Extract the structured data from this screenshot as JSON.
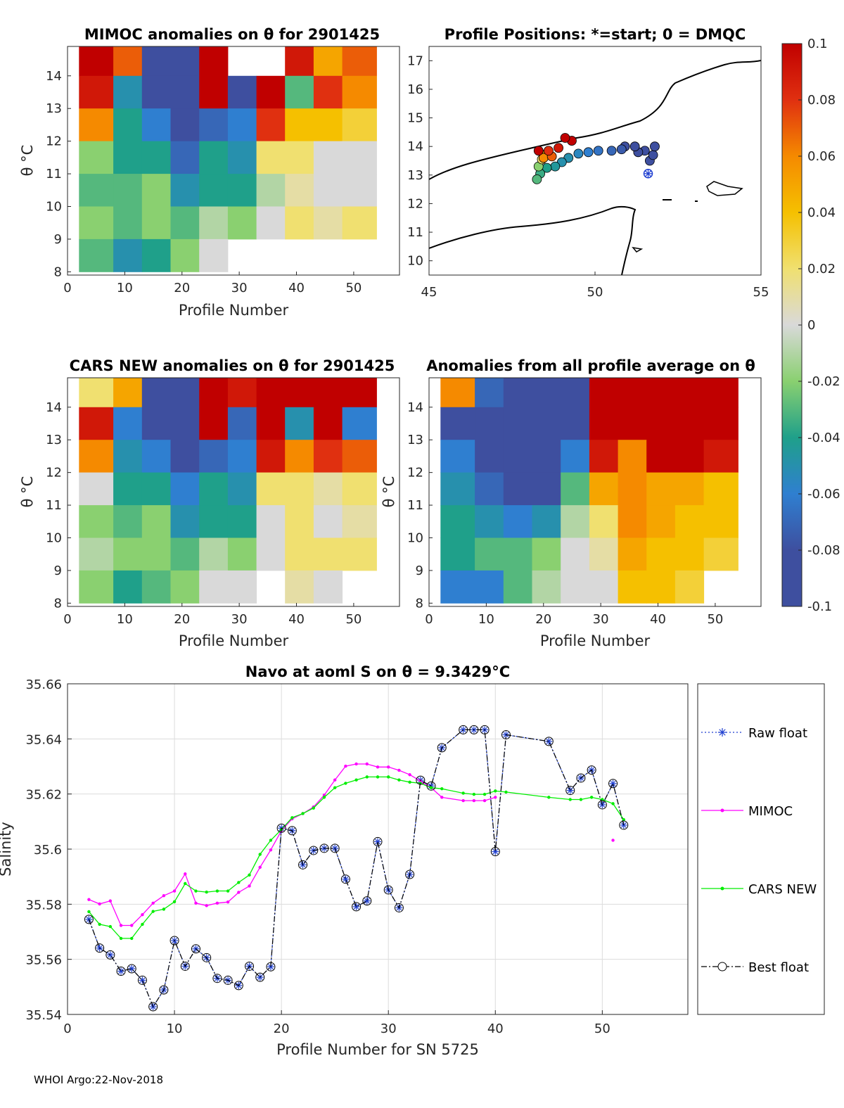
{
  "footer": "WHOI Argo:22-Nov-2018",
  "colors": {
    "raw": "#1f3fd0",
    "mimoc": "#ff00ff",
    "cars": "#00ee00",
    "best": "#000000"
  },
  "chart_data": [
    {
      "id": "mimoc",
      "type": "heatmap",
      "title": "MIMOC anomalies on θ  for 2901425",
      "xlabel": "Profile Number",
      "ylabel": "θ °C",
      "xlim": [
        0,
        58
      ],
      "ylim": [
        7.9,
        14.9
      ],
      "xticks": [
        "0",
        "10",
        "20",
        "30",
        "40",
        "50"
      ],
      "yticks": [
        "8",
        "9",
        "10",
        "11",
        "12",
        "13",
        "14"
      ],
      "rows": [
        "14.5",
        "13.5",
        "12.5",
        "11.5",
        "10.5",
        "9.5",
        "8.5"
      ],
      "cols": [
        "2-7",
        "8-12",
        "13-17",
        "18-22",
        "23-27",
        "28-32",
        "33-37",
        "38-42",
        "43-47",
        "48-53"
      ],
      "values": [
        [
          0.1,
          0.07,
          -0.09,
          -0.1,
          0.1,
          null,
          null,
          0.09,
          0.05,
          0.07
        ],
        [
          0.09,
          -0.05,
          -0.1,
          -0.1,
          0.1,
          -0.08,
          0.1,
          -0.03,
          0.08,
          0.06
        ],
        [
          0.06,
          -0.04,
          -0.06,
          -0.1,
          -0.07,
          -0.06,
          0.08,
          0.04,
          0.04,
          0.03
        ],
        [
          -0.02,
          -0.04,
          -0.04,
          -0.07,
          -0.04,
          -0.05,
          0.02,
          0.02,
          0.0,
          0.0
        ],
        [
          -0.03,
          -0.03,
          -0.02,
          -0.05,
          -0.04,
          -0.04,
          -0.01,
          0.01,
          0.0,
          0.0
        ],
        [
          -0.02,
          -0.03,
          -0.02,
          -0.03,
          -0.01,
          -0.02,
          0.0,
          0.02,
          0.01,
          0.02
        ],
        [
          -0.03,
          -0.05,
          -0.04,
          -0.02,
          0.0,
          null,
          null,
          null,
          null,
          null
        ]
      ]
    },
    {
      "id": "positions",
      "type": "scatter",
      "title": "Profile Positions: *=start; 0 = DMQC",
      "xlim": [
        45,
        55
      ],
      "ylim": [
        9.5,
        17.5
      ],
      "xticks": [
        "45",
        "50",
        "55"
      ],
      "yticks": [
        "10",
        "11",
        "12",
        "13",
        "14",
        "15",
        "16",
        "17"
      ],
      "points": [
        {
          "lon": 51.6,
          "lat": 13.05,
          "c": -0.1,
          "start": true
        },
        {
          "lon": 51.65,
          "lat": 13.5,
          "c": -0.1
        },
        {
          "lon": 51.75,
          "lat": 13.7,
          "c": -0.09
        },
        {
          "lon": 51.8,
          "lat": 14.0,
          "c": -0.09
        },
        {
          "lon": 51.5,
          "lat": 13.85,
          "c": -0.09
        },
        {
          "lon": 51.3,
          "lat": 13.8,
          "c": -0.085
        },
        {
          "lon": 51.2,
          "lat": 14.0,
          "c": -0.08
        },
        {
          "lon": 50.9,
          "lat": 14.0,
          "c": -0.08
        },
        {
          "lon": 50.8,
          "lat": 13.9,
          "c": -0.075
        },
        {
          "lon": 50.5,
          "lat": 13.85,
          "c": -0.07
        },
        {
          "lon": 50.1,
          "lat": 13.85,
          "c": -0.065
        },
        {
          "lon": 49.8,
          "lat": 13.8,
          "c": -0.06
        },
        {
          "lon": 49.5,
          "lat": 13.75,
          "c": -0.055
        },
        {
          "lon": 49.2,
          "lat": 13.6,
          "c": -0.05
        },
        {
          "lon": 49.0,
          "lat": 13.45,
          "c": -0.05
        },
        {
          "lon": 48.8,
          "lat": 13.3,
          "c": -0.045
        },
        {
          "lon": 48.55,
          "lat": 13.25,
          "c": -0.04
        },
        {
          "lon": 48.35,
          "lat": 13.05,
          "c": -0.035
        },
        {
          "lon": 48.25,
          "lat": 12.85,
          "c": -0.03
        },
        {
          "lon": 48.3,
          "lat": 13.3,
          "c": -0.02
        },
        {
          "lon": 48.4,
          "lat": 13.55,
          "c": 0.02
        },
        {
          "lon": 48.55,
          "lat": 13.75,
          "c": 0.04
        },
        {
          "lon": 48.45,
          "lat": 13.6,
          "c": 0.06
        },
        {
          "lon": 48.7,
          "lat": 13.65,
          "c": 0.07
        },
        {
          "lon": 48.6,
          "lat": 13.85,
          "c": 0.08
        },
        {
          "lon": 48.9,
          "lat": 13.95,
          "c": 0.09
        },
        {
          "lon": 49.3,
          "lat": 14.2,
          "c": 0.1
        },
        {
          "lon": 49.1,
          "lat": 14.3,
          "c": 0.1
        },
        {
          "lon": 48.3,
          "lat": 13.85,
          "c": 0.1
        }
      ],
      "colorbar": {
        "min": -0.1,
        "max": 0.1,
        "ticks": [
          "0.1",
          "0.08",
          "0.06",
          "0.04",
          "0.02",
          "0",
          "-0.02",
          "-0.04",
          "-0.06",
          "-0.08",
          "-0.1"
        ]
      }
    },
    {
      "id": "cars",
      "type": "heatmap",
      "title": "CARS NEW anomalies on θ for 2901425",
      "xlabel": "Profile Number",
      "ylabel": "θ °C",
      "xlim": [
        0,
        58
      ],
      "ylim": [
        7.9,
        14.9
      ],
      "xticks": [
        "0",
        "10",
        "20",
        "30",
        "40",
        "50"
      ],
      "yticks": [
        "8",
        "9",
        "10",
        "11",
        "12",
        "13",
        "14"
      ],
      "rows": [
        "14.5",
        "13.5",
        "12.5",
        "11.5",
        "10.5",
        "9.5",
        "8.5"
      ],
      "cols": [
        "2-7",
        "8-12",
        "13-17",
        "18-22",
        "23-27",
        "28-32",
        "33-37",
        "38-42",
        "43-47",
        "48-53"
      ],
      "values": [
        [
          0.02,
          0.05,
          -0.09,
          -0.1,
          0.1,
          0.09,
          0.1,
          0.1,
          0.1,
          0.1
        ],
        [
          0.09,
          -0.06,
          -0.1,
          -0.1,
          0.1,
          -0.07,
          0.1,
          -0.05,
          0.1,
          -0.06
        ],
        [
          0.06,
          -0.05,
          -0.06,
          -0.1,
          -0.07,
          -0.06,
          0.09,
          0.06,
          0.08,
          0.07
        ],
        [
          0.0,
          -0.04,
          -0.04,
          -0.06,
          -0.04,
          -0.05,
          0.02,
          0.02,
          0.01,
          0.02
        ],
        [
          -0.02,
          -0.03,
          -0.02,
          -0.05,
          -0.04,
          -0.04,
          0.0,
          0.02,
          0.0,
          0.01
        ],
        [
          -0.01,
          -0.02,
          -0.02,
          -0.03,
          -0.01,
          -0.02,
          0.0,
          0.02,
          0.02,
          0.02
        ],
        [
          -0.02,
          -0.04,
          -0.03,
          -0.02,
          0.0,
          0.0,
          null,
          0.01,
          0.0,
          null
        ]
      ]
    },
    {
      "id": "allavg",
      "type": "heatmap",
      "title": "Anomalies from all profile average on θ",
      "xlabel": "Profile Number",
      "ylabel": "θ °C",
      "xlim": [
        0,
        58
      ],
      "ylim": [
        7.9,
        14.9
      ],
      "xticks": [
        "0",
        "10",
        "20",
        "30",
        "40",
        "50"
      ],
      "yticks": [
        "8",
        "9",
        "10",
        "11",
        "12",
        "13",
        "14"
      ],
      "rows": [
        "14.5",
        "13.5",
        "12.5",
        "11.5",
        "10.5",
        "9.5",
        "8.5"
      ],
      "cols": [
        "2-7",
        "8-12",
        "13-17",
        "18-22",
        "23-27",
        "28-32",
        "33-37",
        "38-42",
        "43-47",
        "48-53"
      ],
      "values": [
        [
          0.06,
          -0.07,
          -0.1,
          -0.1,
          -0.09,
          0.1,
          0.1,
          0.1,
          0.1,
          0.1
        ],
        [
          -0.08,
          -0.1,
          -0.1,
          -0.1,
          -0.09,
          0.1,
          0.1,
          0.1,
          0.1,
          0.1
        ],
        [
          -0.06,
          -0.09,
          -0.1,
          -0.1,
          -0.06,
          0.09,
          0.06,
          0.1,
          0.1,
          0.09
        ],
        [
          -0.05,
          -0.07,
          -0.09,
          -0.09,
          -0.03,
          0.05,
          0.06,
          0.05,
          0.05,
          0.04
        ],
        [
          -0.04,
          -0.05,
          -0.06,
          -0.05,
          -0.01,
          0.02,
          0.06,
          0.05,
          0.04,
          0.04
        ],
        [
          -0.04,
          -0.03,
          -0.03,
          -0.02,
          0.0,
          0.01,
          0.05,
          0.04,
          0.04,
          0.03
        ],
        [
          -0.06,
          -0.06,
          -0.03,
          -0.01,
          0.0,
          0.0,
          0.04,
          0.04,
          0.03,
          null
        ]
      ]
    },
    {
      "id": "salinity",
      "type": "line",
      "title": "Navo at aoml S on θ = 9.3429°C",
      "xlabel": "Profile Number for SN 5725",
      "ylabel": "Salinity",
      "xlim": [
        0,
        58
      ],
      "ylim": [
        35.54,
        35.66
      ],
      "xticks": [
        0,
        10,
        20,
        30,
        40,
        50
      ],
      "yticks": [
        35.54,
        35.56,
        35.58,
        35.6,
        35.62,
        35.64,
        35.66
      ],
      "ytick_labels": [
        "35.54",
        "35.56",
        "35.58",
        "35.6",
        "35.62",
        "35.64",
        "35.66"
      ],
      "x": [
        2,
        3,
        4,
        5,
        6,
        7,
        8,
        9,
        10,
        11,
        12,
        13,
        14,
        15,
        16,
        17,
        18,
        19,
        20,
        21,
        22,
        23,
        24,
        25,
        26,
        27,
        28,
        29,
        30,
        31,
        32,
        33,
        34,
        35,
        37,
        38,
        39,
        40,
        41,
        45,
        47,
        48,
        49,
        50,
        51,
        52
      ],
      "series": [
        {
          "name": "Raw float",
          "key": "raw",
          "values": [
            35.5745,
            35.5641,
            35.5616,
            35.5557,
            35.5566,
            35.5524,
            35.5428,
            35.5489,
            35.5668,
            35.5575,
            35.5638,
            35.5606,
            35.5531,
            35.5524,
            35.5505,
            35.5575,
            35.5535,
            35.5573,
            35.6076,
            35.6067,
            35.5943,
            35.5995,
            35.6003,
            35.6003,
            35.5891,
            35.5791,
            35.5812,
            35.6027,
            35.5852,
            35.5787,
            35.5908,
            35.625,
            35.6229,
            35.6368,
            35.6433,
            35.6433,
            35.6433,
            35.5991,
            35.6415,
            35.6391,
            35.6213,
            35.6258,
            35.6287,
            35.6161,
            35.6238,
            35.6087
          ]
        },
        {
          "name": "MIMOC",
          "key": "mimoc",
          "values": [
            35.5817,
            35.5801,
            35.5812,
            35.5723,
            35.5723,
            35.5762,
            35.5804,
            35.5831,
            35.5848,
            35.591,
            35.5804,
            35.5795,
            35.5804,
            35.5808,
            35.5843,
            35.5866,
            35.5934,
            35.5997,
            35.6067,
            35.611,
            35.6129,
            35.6153,
            35.6196,
            35.6251,
            35.6301,
            35.6309,
            35.6309,
            35.6298,
            35.6298,
            35.6286,
            35.627,
            35.6247,
            35.6223,
            35.6188,
            35.6176,
            35.6176,
            35.6176,
            35.6188,
            null,
            null,
            null,
            null,
            null,
            null,
            35.6032,
            null
          ]
        },
        {
          "name": "CARS NEW",
          "key": "cars",
          "values": [
            35.5773,
            35.5727,
            35.5719,
            35.5676,
            35.5676,
            35.5727,
            35.5774,
            35.5782,
            35.5809,
            35.5875,
            35.5848,
            35.5844,
            35.5848,
            35.5848,
            35.5879,
            35.5906,
            35.5981,
            35.6032,
            35.6071,
            35.6114,
            35.6129,
            35.6149,
            35.6188,
            35.6223,
            35.6239,
            35.6251,
            35.6262,
            35.6262,
            35.6262,
            35.6251,
            35.6243,
            35.6239,
            35.6223,
            35.6219,
            35.6203,
            35.6199,
            35.6199,
            35.6211,
            35.6207,
            35.6188,
            35.618,
            35.618,
            35.6188,
            35.618,
            35.6165,
            35.6107
          ]
        },
        {
          "name": "Best float",
          "key": "best",
          "values": [
            35.5745,
            35.5641,
            35.5616,
            35.5557,
            35.5566,
            35.5524,
            35.5428,
            35.5489,
            35.5668,
            35.5575,
            35.5638,
            35.5606,
            35.5531,
            35.5524,
            35.5505,
            35.5575,
            35.5535,
            35.5573,
            35.6076,
            35.6067,
            35.5943,
            35.5995,
            35.6003,
            35.6003,
            35.5891,
            35.5791,
            35.5812,
            35.6027,
            35.5852,
            35.5787,
            35.5908,
            35.625,
            35.6229,
            35.6368,
            35.6433,
            35.6433,
            35.6433,
            35.5991,
            35.6415,
            35.6391,
            35.6213,
            35.6258,
            35.6287,
            35.6161,
            35.6238,
            35.6087
          ]
        }
      ],
      "legend": [
        "Raw float",
        "MIMOC",
        "CARS NEW",
        "Best float"
      ]
    }
  ]
}
